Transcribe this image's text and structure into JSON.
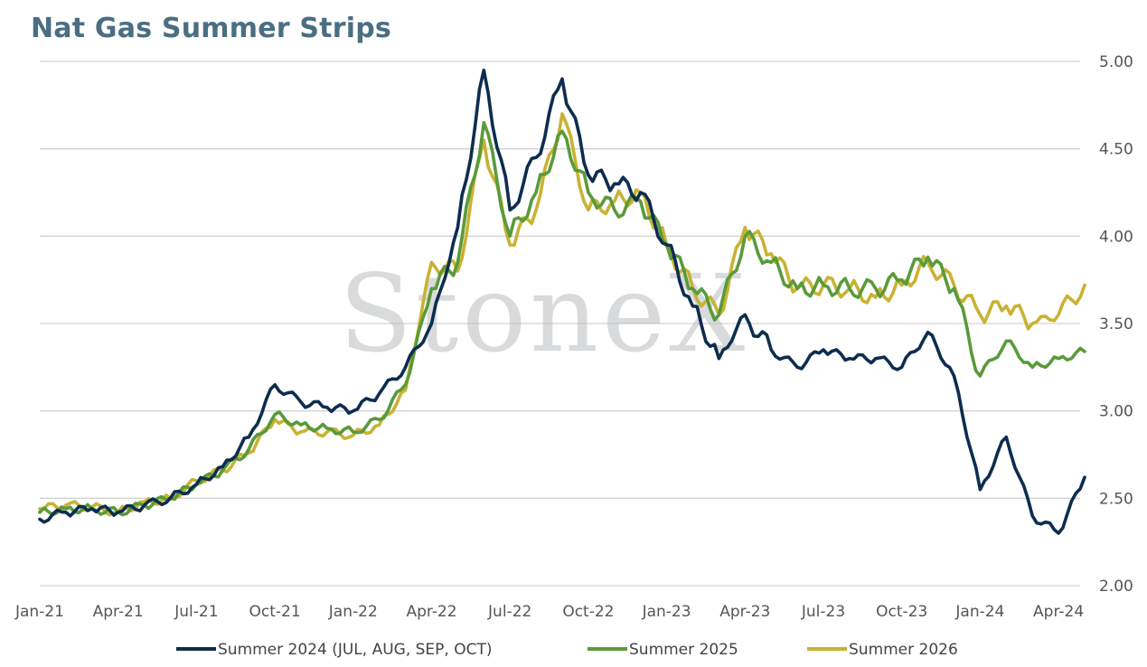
{
  "title": "Nat Gas Summer Strips",
  "watermark": "StoneX",
  "chart_data": {
    "type": "line",
    "title": "Nat Gas Summer Strips",
    "xlabel": "",
    "ylabel": "",
    "ylim": [
      2.0,
      5.0
    ],
    "y_ticks": [
      "2.00",
      "2.50",
      "3.00",
      "3.50",
      "4.00",
      "4.50",
      "5.00"
    ],
    "y_axis_side": "right",
    "grid": "horizontal",
    "legend_position": "bottom",
    "x_ticks": [
      "Jan-21",
      "Apr-21",
      "Jul-21",
      "Oct-21",
      "Jan-22",
      "Apr-22",
      "Jul-22",
      "Oct-22",
      "Jan-23",
      "Apr-23",
      "Jul-23",
      "Oct-23",
      "Jan-24",
      "Apr-24"
    ],
    "series": [
      {
        "name": "Summer 2024 (JUL, AUG, SEP, OCT)",
        "color": "#0d2d4f",
        "x": [
          "Jan-21",
          "Feb-21",
          "Mar-21",
          "Apr-21",
          "May-21",
          "Jun-21",
          "Jul-21",
          "Aug-21",
          "Sep-21",
          "Oct-21",
          "Nov-21",
          "Dec-21",
          "Jan-22",
          "Feb-22",
          "Mar-22",
          "Apr-22",
          "May-22",
          "Jun-22",
          "Jul-22",
          "Aug-22",
          "Sep-22",
          "Oct-22",
          "Nov-22",
          "Dec-22",
          "Jan-23",
          "Feb-23",
          "Mar-23",
          "Apr-23",
          "May-23",
          "Jun-23",
          "Jul-23",
          "Aug-23",
          "Sep-23",
          "Oct-23",
          "Nov-23",
          "Dec-23",
          "Jan-24",
          "Feb-24",
          "Mar-24",
          "Apr-24",
          "May-24"
        ],
        "y": [
          2.38,
          2.42,
          2.44,
          2.42,
          2.46,
          2.5,
          2.58,
          2.68,
          2.85,
          3.15,
          3.05,
          3.02,
          3.0,
          3.1,
          3.25,
          3.5,
          4.05,
          4.95,
          4.15,
          4.45,
          4.9,
          4.35,
          4.3,
          4.25,
          3.95,
          3.6,
          3.3,
          3.55,
          3.35,
          3.25,
          3.35,
          3.3,
          3.3,
          3.25,
          3.45,
          3.2,
          2.55,
          2.85,
          2.4,
          2.3,
          2.62
        ]
      },
      {
        "name": "Summer 2025",
        "color": "#5a9a3a",
        "x": [
          "Jan-21",
          "Feb-21",
          "Mar-21",
          "Apr-21",
          "May-21",
          "Jun-21",
          "Jul-21",
          "Aug-21",
          "Sep-21",
          "Oct-21",
          "Nov-21",
          "Dec-21",
          "Jan-22",
          "Feb-22",
          "Mar-22",
          "Apr-22",
          "May-22",
          "Jun-22",
          "Jul-22",
          "Aug-22",
          "Sep-22",
          "Oct-22",
          "Nov-22",
          "Dec-22",
          "Jan-23",
          "Feb-23",
          "Mar-23",
          "Apr-23",
          "May-23",
          "Jun-23",
          "Jul-23",
          "Aug-23",
          "Sep-23",
          "Oct-23",
          "Nov-23",
          "Dec-23",
          "Jan-24",
          "Feb-24",
          "Mar-24",
          "Apr-24",
          "May-24"
        ],
        "y": [
          2.42,
          2.44,
          2.44,
          2.42,
          2.46,
          2.5,
          2.58,
          2.66,
          2.78,
          2.98,
          2.92,
          2.9,
          2.88,
          2.95,
          3.15,
          3.7,
          3.85,
          4.65,
          4.0,
          4.25,
          4.6,
          4.25,
          4.15,
          4.2,
          3.95,
          3.7,
          3.55,
          4.0,
          3.85,
          3.7,
          3.72,
          3.7,
          3.7,
          3.75,
          3.88,
          3.7,
          3.2,
          3.4,
          3.25,
          3.3,
          3.34
        ]
      },
      {
        "name": "Summer 2026",
        "color": "#c9b232",
        "x": [
          "Jan-21",
          "Feb-21",
          "Mar-21",
          "Apr-21",
          "May-21",
          "Jun-21",
          "Jul-21",
          "Aug-21",
          "Sep-21",
          "Oct-21",
          "Nov-21",
          "Dec-21",
          "Jan-22",
          "Feb-22",
          "Mar-22",
          "Apr-22",
          "May-22",
          "Jun-22",
          "Jul-22",
          "Aug-22",
          "Sep-22",
          "Oct-22",
          "Nov-22",
          "Dec-22",
          "Jan-23",
          "Feb-23",
          "Mar-23",
          "Apr-23",
          "May-23",
          "Jun-23",
          "Jul-23",
          "Aug-23",
          "Sep-23",
          "Oct-23",
          "Nov-23",
          "Dec-23",
          "Jan-24",
          "Feb-24",
          "Mar-24",
          "Apr-24",
          "May-24"
        ],
        "y": [
          2.44,
          2.46,
          2.45,
          2.42,
          2.48,
          2.5,
          2.6,
          2.66,
          2.76,
          2.95,
          2.88,
          2.88,
          2.86,
          2.92,
          3.12,
          3.85,
          3.8,
          4.55,
          3.95,
          4.15,
          4.7,
          4.15,
          4.2,
          4.25,
          3.95,
          3.7,
          3.55,
          4.05,
          3.9,
          3.7,
          3.72,
          3.7,
          3.65,
          3.72,
          3.85,
          3.72,
          3.55,
          3.6,
          3.5,
          3.55,
          3.72
        ]
      }
    ]
  }
}
